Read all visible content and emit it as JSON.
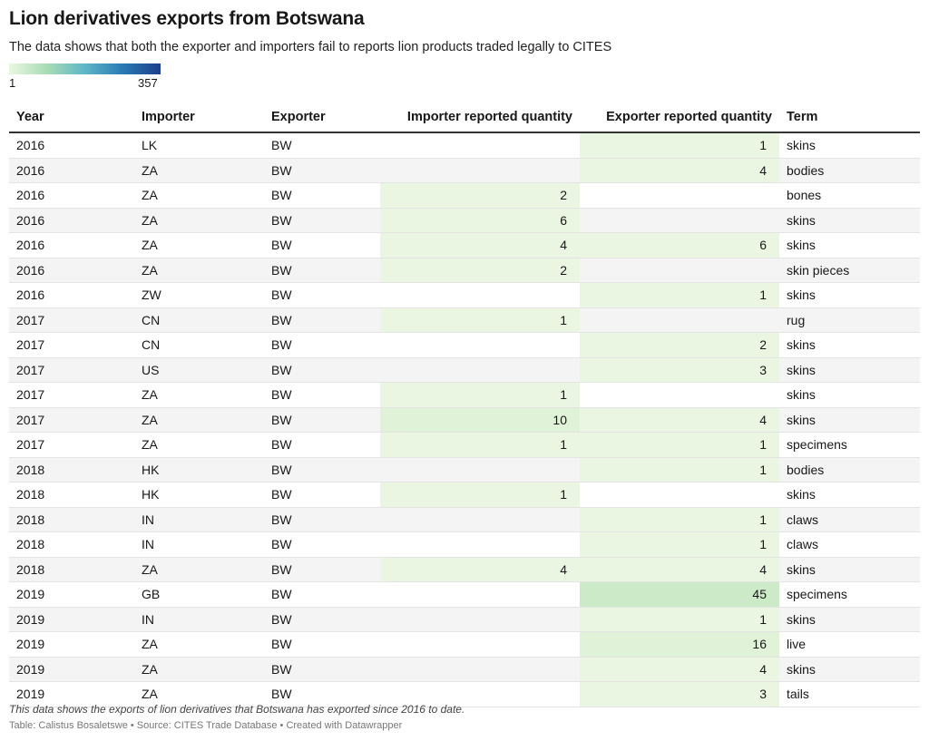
{
  "title": "Lion derivatives exports from Botswana",
  "subtitle": "The data shows that both the exporter and importers fail to reports lion products traded legally to CITES",
  "legend": {
    "min": "1",
    "max": "357"
  },
  "colors": {
    "low": "#eaf7e2",
    "high": "#1d3f8c",
    "header_rule": "#333333",
    "stripe": "#f4f4f4"
  },
  "chart_data": {
    "type": "table",
    "columns": [
      "Year",
      "Importer",
      "Exporter",
      "Importer reported quantity",
      "Exporter reported quantity",
      "Term"
    ],
    "rows": [
      [
        "2016",
        "LK",
        "BW",
        "",
        "1",
        "skins"
      ],
      [
        "2016",
        "ZA",
        "BW",
        "",
        "4",
        "bodies"
      ],
      [
        "2016",
        "ZA",
        "BW",
        "2",
        "",
        "bones"
      ],
      [
        "2016",
        "ZA",
        "BW",
        "6",
        "",
        "skins"
      ],
      [
        "2016",
        "ZA",
        "BW",
        "4",
        "6",
        "skins"
      ],
      [
        "2016",
        "ZA",
        "BW",
        "2",
        "",
        "skin pieces"
      ],
      [
        "2016",
        "ZW",
        "BW",
        "",
        "1",
        "skins"
      ],
      [
        "2017",
        "CN",
        "BW",
        "1",
        "",
        "rug"
      ],
      [
        "2017",
        "CN",
        "BW",
        "",
        "2",
        "skins"
      ],
      [
        "2017",
        "US",
        "BW",
        "",
        "3",
        "skins"
      ],
      [
        "2017",
        "ZA",
        "BW",
        "1",
        "",
        "skins"
      ],
      [
        "2017",
        "ZA",
        "BW",
        "10",
        "4",
        "skins"
      ],
      [
        "2017",
        "ZA",
        "BW",
        "1",
        "1",
        "specimens"
      ],
      [
        "2018",
        "HK",
        "BW",
        "",
        "1",
        "bodies"
      ],
      [
        "2018",
        "HK",
        "BW",
        "1",
        "",
        "skins"
      ],
      [
        "2018",
        "IN",
        "BW",
        "",
        "1",
        "claws"
      ],
      [
        "2018",
        "IN",
        "BW",
        "",
        "1",
        "claws"
      ],
      [
        "2018",
        "ZA",
        "BW",
        "4",
        "4",
        "skins"
      ],
      [
        "2019",
        "GB",
        "BW",
        "",
        "45",
        "specimens"
      ],
      [
        "2019",
        "IN",
        "BW",
        "",
        "1",
        "skins"
      ],
      [
        "2019",
        "ZA",
        "BW",
        "",
        "16",
        "live"
      ],
      [
        "2019",
        "ZA",
        "BW",
        "",
        "4",
        "skins"
      ],
      [
        "2019",
        "ZA",
        "BW",
        "",
        "3",
        "tails"
      ]
    ],
    "color_scale": {
      "min": 1,
      "max": 357
    }
  },
  "footer": {
    "note": "This data shows the exports of lion derivatives that Botswana has exported since 2016 to date.",
    "source": "Table: Calistus Bosaletswe • Source: CITES Trade Database • Created with Datawrapper"
  }
}
